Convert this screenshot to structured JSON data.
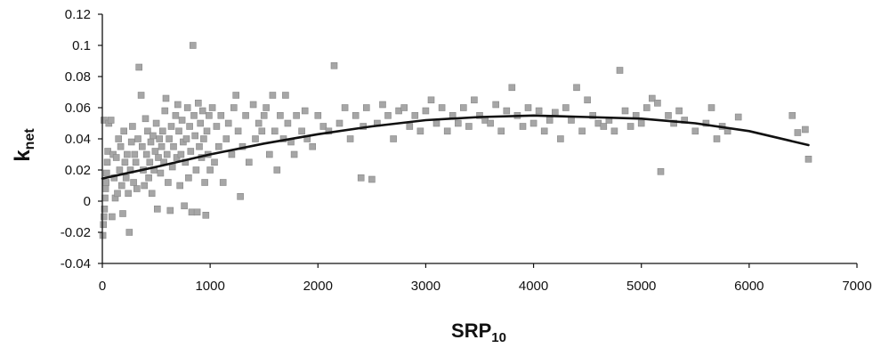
{
  "chart_data": {
    "type": "scatter",
    "xlabel": {
      "main": "SRP",
      "sub": "10"
    },
    "ylabel": {
      "main": "k",
      "sub": "net"
    },
    "xlim": [
      0,
      7000
    ],
    "ylim": [
      -0.04,
      0.12
    ],
    "x_ticks": [
      "0",
      "1000",
      "2000",
      "3000",
      "4000",
      "5000",
      "6000",
      "7000"
    ],
    "y_ticks": [
      "-0.04",
      "-0.02",
      "0",
      "0.02",
      "0.04",
      "0.06",
      "0.08",
      "0.1",
      "0.12"
    ],
    "x_tick_values": [
      0,
      1000,
      2000,
      3000,
      4000,
      5000,
      6000,
      7000
    ],
    "y_tick_values": [
      -0.04,
      -0.02,
      0,
      0.02,
      0.04,
      0.06,
      0.08,
      0.1,
      0.12
    ],
    "grid": false,
    "legend": "none",
    "colors": {
      "points": "#a6a6a6",
      "point_border": "#888888",
      "trend": "#111111",
      "axis": "#111111"
    },
    "series": [
      {
        "kind": "points",
        "points": [
          [
            5,
            -0.022
          ],
          [
            10,
            -0.015
          ],
          [
            15,
            -0.01
          ],
          [
            20,
            -0.005
          ],
          [
            25,
            0.002
          ],
          [
            30,
            0.008
          ],
          [
            35,
            0.012
          ],
          [
            40,
            0.018
          ],
          [
            45,
            0.025
          ],
          [
            50,
            0.032
          ],
          [
            15,
            0.052
          ],
          [
            60,
            0.05
          ],
          [
            80,
            0.052
          ],
          [
            90,
            -0.01
          ],
          [
            100,
            0.03
          ],
          [
            110,
            0.015
          ],
          [
            120,
            0.002
          ],
          [
            130,
            0.028
          ],
          [
            140,
            0.005
          ],
          [
            150,
            0.04
          ],
          [
            160,
            0.02
          ],
          [
            170,
            0.035
          ],
          [
            180,
            0.01
          ],
          [
            190,
            -0.008
          ],
          [
            200,
            0.045
          ],
          [
            210,
            0.025
          ],
          [
            220,
            0.015
          ],
          [
            230,
            0.03
          ],
          [
            240,
            0.005
          ],
          [
            250,
            -0.02
          ],
          [
            260,
            0.02
          ],
          [
            270,
            0.038
          ],
          [
            280,
            0.048
          ],
          [
            290,
            0.012
          ],
          [
            300,
            0.03
          ],
          [
            310,
            0.025
          ],
          [
            320,
            0.008
          ],
          [
            330,
            0.04
          ],
          [
            340,
            0.086
          ],
          [
            360,
            0.068
          ],
          [
            370,
            0.035
          ],
          [
            380,
            0.02
          ],
          [
            390,
            0.01
          ],
          [
            400,
            0.053
          ],
          [
            410,
            0.03
          ],
          [
            420,
            0.045
          ],
          [
            430,
            0.015
          ],
          [
            440,
            0.025
          ],
          [
            450,
            0.038
          ],
          [
            460,
            0.005
          ],
          [
            470,
            0.042
          ],
          [
            480,
            0.02
          ],
          [
            490,
            0.032
          ],
          [
            500,
            0.05
          ],
          [
            510,
            -0.005
          ],
          [
            520,
            0.028
          ],
          [
            530,
            0.04
          ],
          [
            540,
            0.018
          ],
          [
            550,
            0.035
          ],
          [
            560,
            0.045
          ],
          [
            570,
            0.025
          ],
          [
            580,
            0.058
          ],
          [
            590,
            0.066
          ],
          [
            600,
            0.03
          ],
          [
            610,
            0.012
          ],
          [
            620,
            0.04
          ],
          [
            630,
            -0.006
          ],
          [
            640,
            0.048
          ],
          [
            650,
            0.022
          ],
          [
            660,
            0.035
          ],
          [
            680,
            0.055
          ],
          [
            690,
            0.028
          ],
          [
            700,
            0.062
          ],
          [
            710,
            0.045
          ],
          [
            720,
            0.01
          ],
          [
            730,
            0.03
          ],
          [
            740,
            0.052
          ],
          [
            750,
            0.038
          ],
          [
            760,
            -0.003
          ],
          [
            770,
            0.025
          ],
          [
            780,
            0.04
          ],
          [
            790,
            0.06
          ],
          [
            800,
            0.015
          ],
          [
            810,
            0.048
          ],
          [
            820,
            0.032
          ],
          [
            830,
            -0.007
          ],
          [
            840,
            0.1
          ],
          [
            850,
            0.055
          ],
          [
            860,
            0.042
          ],
          [
            870,
            0.02
          ],
          [
            880,
            -0.007
          ],
          [
            890,
            0.063
          ],
          [
            900,
            0.035
          ],
          [
            910,
            0.05
          ],
          [
            920,
            0.028
          ],
          [
            930,
            0.058
          ],
          [
            940,
            0.04
          ],
          [
            950,
            0.012
          ],
          [
            960,
            -0.009
          ],
          [
            970,
            0.045
          ],
          [
            980,
            0.03
          ],
          [
            990,
            0.055
          ],
          [
            1000,
            0.02
          ],
          [
            1020,
            0.06
          ],
          [
            1040,
            0.025
          ],
          [
            1060,
            0.048
          ],
          [
            1080,
            0.035
          ],
          [
            1100,
            0.055
          ],
          [
            1120,
            0.012
          ],
          [
            1150,
            0.04
          ],
          [
            1170,
            0.05
          ],
          [
            1200,
            0.03
          ],
          [
            1220,
            0.06
          ],
          [
            1240,
            0.068
          ],
          [
            1260,
            0.045
          ],
          [
            1280,
            0.003
          ],
          [
            1300,
            0.035
          ],
          [
            1330,
            0.055
          ],
          [
            1360,
            0.025
          ],
          [
            1400,
            0.062
          ],
          [
            1420,
            0.04
          ],
          [
            1450,
            0.05
          ],
          [
            1480,
            0.045
          ],
          [
            1500,
            0.055
          ],
          [
            1520,
            0.06
          ],
          [
            1550,
            0.03
          ],
          [
            1580,
            0.068
          ],
          [
            1600,
            0.045
          ],
          [
            1620,
            0.02
          ],
          [
            1650,
            0.055
          ],
          [
            1680,
            0.04
          ],
          [
            1700,
            0.068
          ],
          [
            1720,
            0.05
          ],
          [
            1750,
            0.038
          ],
          [
            1780,
            0.03
          ],
          [
            1800,
            0.055
          ],
          [
            1850,
            0.045
          ],
          [
            1880,
            0.058
          ],
          [
            1900,
            0.04
          ],
          [
            1950,
            0.035
          ],
          [
            2000,
            0.055
          ],
          [
            2050,
            0.048
          ],
          [
            2100,
            0.045
          ],
          [
            2150,
            0.087
          ],
          [
            2200,
            0.05
          ],
          [
            2250,
            0.06
          ],
          [
            2300,
            0.04
          ],
          [
            2350,
            0.055
          ],
          [
            2400,
            0.015
          ],
          [
            2420,
            0.048
          ],
          [
            2450,
            0.06
          ],
          [
            2500,
            0.014
          ],
          [
            2550,
            0.05
          ],
          [
            2600,
            0.062
          ],
          [
            2650,
            0.055
          ],
          [
            2700,
            0.04
          ],
          [
            2750,
            0.058
          ],
          [
            2800,
            0.06
          ],
          [
            2850,
            0.048
          ],
          [
            2900,
            0.055
          ],
          [
            2950,
            0.045
          ],
          [
            3000,
            0.058
          ],
          [
            3050,
            0.065
          ],
          [
            3100,
            0.05
          ],
          [
            3150,
            0.06
          ],
          [
            3200,
            0.045
          ],
          [
            3250,
            0.055
          ],
          [
            3300,
            0.05
          ],
          [
            3350,
            0.06
          ],
          [
            3400,
            0.048
          ],
          [
            3450,
            0.065
          ],
          [
            3500,
            0.055
          ],
          [
            3550,
            0.052
          ],
          [
            3600,
            0.05
          ],
          [
            3650,
            0.062
          ],
          [
            3700,
            0.045
          ],
          [
            3750,
            0.058
          ],
          [
            3800,
            0.073
          ],
          [
            3850,
            0.055
          ],
          [
            3900,
            0.048
          ],
          [
            3950,
            0.06
          ],
          [
            4000,
            0.05
          ],
          [
            4050,
            0.058
          ],
          [
            4100,
            0.045
          ],
          [
            4150,
            0.052
          ],
          [
            4200,
            0.057
          ],
          [
            4250,
            0.04
          ],
          [
            4300,
            0.06
          ],
          [
            4350,
            0.052
          ],
          [
            4400,
            0.073
          ],
          [
            4450,
            0.045
          ],
          [
            4500,
            0.065
          ],
          [
            4550,
            0.055
          ],
          [
            4600,
            0.05
          ],
          [
            4650,
            0.048
          ],
          [
            4700,
            0.052
          ],
          [
            4750,
            0.045
          ],
          [
            4800,
            0.084
          ],
          [
            4850,
            0.058
          ],
          [
            4900,
            0.048
          ],
          [
            4950,
            0.055
          ],
          [
            5000,
            0.05
          ],
          [
            5050,
            0.06
          ],
          [
            5100,
            0.066
          ],
          [
            5150,
            0.063
          ],
          [
            5180,
            0.019
          ],
          [
            5250,
            0.055
          ],
          [
            5300,
            0.05
          ],
          [
            5350,
            0.058
          ],
          [
            5400,
            0.052
          ],
          [
            5500,
            0.045
          ],
          [
            5600,
            0.05
          ],
          [
            5650,
            0.06
          ],
          [
            5700,
            0.04
          ],
          [
            5750,
            0.048
          ],
          [
            5800,
            0.045
          ],
          [
            5900,
            0.054
          ],
          [
            6400,
            0.055
          ],
          [
            6450,
            0.044
          ],
          [
            6520,
            0.046
          ],
          [
            6550,
            0.027
          ]
        ]
      },
      {
        "kind": "trendline",
        "points": [
          [
            0,
            0.0145
          ],
          [
            500,
            0.022
          ],
          [
            1000,
            0.03
          ],
          [
            1500,
            0.037
          ],
          [
            2000,
            0.043
          ],
          [
            2500,
            0.048
          ],
          [
            3000,
            0.052
          ],
          [
            3500,
            0.054
          ],
          [
            4000,
            0.055
          ],
          [
            4500,
            0.054
          ],
          [
            5000,
            0.053
          ],
          [
            5500,
            0.05
          ],
          [
            6000,
            0.045
          ],
          [
            6550,
            0.036
          ]
        ]
      }
    ]
  }
}
